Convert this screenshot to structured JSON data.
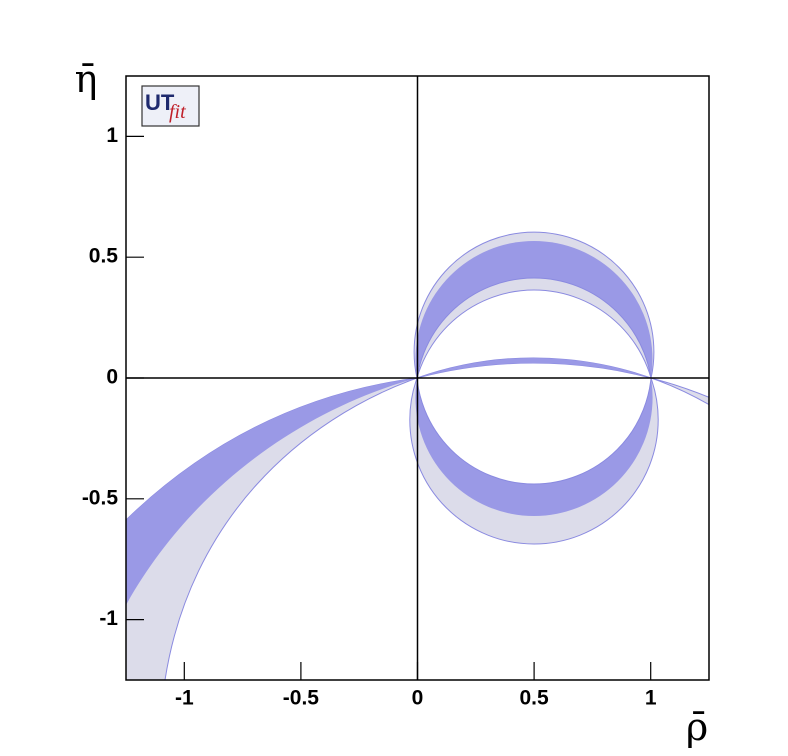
{
  "chart_data": {
    "type": "region",
    "x_label": "ρ̄",
    "y_label": "η̄",
    "logo": {
      "main": "UT",
      "sub": "fit"
    },
    "xlim": [
      -1.25,
      1.25
    ],
    "ylim": [
      -1.25,
      1.25
    ],
    "xticks": [
      -1,
      -0.5,
      0,
      0.5,
      1
    ],
    "yticks": [
      -1,
      -0.5,
      0,
      0.5,
      1
    ],
    "colors": {
      "dark": "#9a99e6",
      "light": "#dcdcea",
      "edge": "#8a8ae0"
    }
  }
}
